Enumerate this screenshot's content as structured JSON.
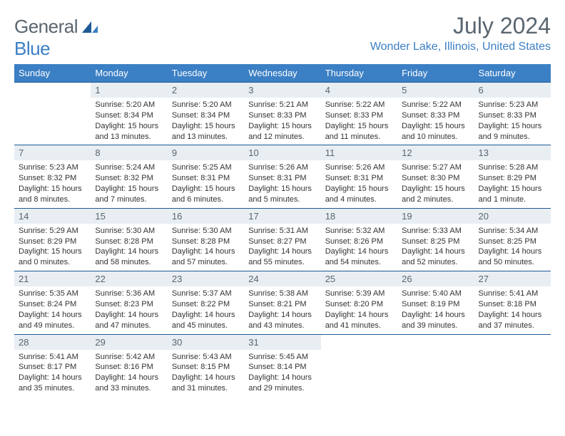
{
  "logo": {
    "general": "General",
    "blue": "Blue"
  },
  "title": "July 2024",
  "location": "Wonder Lake, Illinois, United States",
  "colors": {
    "header_bg": "#3b7fc4",
    "header_text": "#ffffff",
    "daynum_bg": "#e9eef3",
    "border": "#1f5a96",
    "logo_gray": "#5a6670",
    "logo_blue": "#3b7fc4"
  },
  "weekdays": [
    "Sunday",
    "Monday",
    "Tuesday",
    "Wednesday",
    "Thursday",
    "Friday",
    "Saturday"
  ],
  "weeks": [
    [
      {
        "n": "",
        "sr": "",
        "ss": "",
        "dl1": "",
        "dl2": "",
        "empty": true
      },
      {
        "n": "1",
        "sr": "Sunrise: 5:20 AM",
        "ss": "Sunset: 8:34 PM",
        "dl1": "Daylight: 15 hours",
        "dl2": "and 13 minutes."
      },
      {
        "n": "2",
        "sr": "Sunrise: 5:20 AM",
        "ss": "Sunset: 8:34 PM",
        "dl1": "Daylight: 15 hours",
        "dl2": "and 13 minutes."
      },
      {
        "n": "3",
        "sr": "Sunrise: 5:21 AM",
        "ss": "Sunset: 8:33 PM",
        "dl1": "Daylight: 15 hours",
        "dl2": "and 12 minutes."
      },
      {
        "n": "4",
        "sr": "Sunrise: 5:22 AM",
        "ss": "Sunset: 8:33 PM",
        "dl1": "Daylight: 15 hours",
        "dl2": "and 11 minutes."
      },
      {
        "n": "5",
        "sr": "Sunrise: 5:22 AM",
        "ss": "Sunset: 8:33 PM",
        "dl1": "Daylight: 15 hours",
        "dl2": "and 10 minutes."
      },
      {
        "n": "6",
        "sr": "Sunrise: 5:23 AM",
        "ss": "Sunset: 8:33 PM",
        "dl1": "Daylight: 15 hours",
        "dl2": "and 9 minutes."
      }
    ],
    [
      {
        "n": "7",
        "sr": "Sunrise: 5:23 AM",
        "ss": "Sunset: 8:32 PM",
        "dl1": "Daylight: 15 hours",
        "dl2": "and 8 minutes."
      },
      {
        "n": "8",
        "sr": "Sunrise: 5:24 AM",
        "ss": "Sunset: 8:32 PM",
        "dl1": "Daylight: 15 hours",
        "dl2": "and 7 minutes."
      },
      {
        "n": "9",
        "sr": "Sunrise: 5:25 AM",
        "ss": "Sunset: 8:31 PM",
        "dl1": "Daylight: 15 hours",
        "dl2": "and 6 minutes."
      },
      {
        "n": "10",
        "sr": "Sunrise: 5:26 AM",
        "ss": "Sunset: 8:31 PM",
        "dl1": "Daylight: 15 hours",
        "dl2": "and 5 minutes."
      },
      {
        "n": "11",
        "sr": "Sunrise: 5:26 AM",
        "ss": "Sunset: 8:31 PM",
        "dl1": "Daylight: 15 hours",
        "dl2": "and 4 minutes."
      },
      {
        "n": "12",
        "sr": "Sunrise: 5:27 AM",
        "ss": "Sunset: 8:30 PM",
        "dl1": "Daylight: 15 hours",
        "dl2": "and 2 minutes."
      },
      {
        "n": "13",
        "sr": "Sunrise: 5:28 AM",
        "ss": "Sunset: 8:29 PM",
        "dl1": "Daylight: 15 hours",
        "dl2": "and 1 minute."
      }
    ],
    [
      {
        "n": "14",
        "sr": "Sunrise: 5:29 AM",
        "ss": "Sunset: 8:29 PM",
        "dl1": "Daylight: 15 hours",
        "dl2": "and 0 minutes."
      },
      {
        "n": "15",
        "sr": "Sunrise: 5:30 AM",
        "ss": "Sunset: 8:28 PM",
        "dl1": "Daylight: 14 hours",
        "dl2": "and 58 minutes."
      },
      {
        "n": "16",
        "sr": "Sunrise: 5:30 AM",
        "ss": "Sunset: 8:28 PM",
        "dl1": "Daylight: 14 hours",
        "dl2": "and 57 minutes."
      },
      {
        "n": "17",
        "sr": "Sunrise: 5:31 AM",
        "ss": "Sunset: 8:27 PM",
        "dl1": "Daylight: 14 hours",
        "dl2": "and 55 minutes."
      },
      {
        "n": "18",
        "sr": "Sunrise: 5:32 AM",
        "ss": "Sunset: 8:26 PM",
        "dl1": "Daylight: 14 hours",
        "dl2": "and 54 minutes."
      },
      {
        "n": "19",
        "sr": "Sunrise: 5:33 AM",
        "ss": "Sunset: 8:25 PM",
        "dl1": "Daylight: 14 hours",
        "dl2": "and 52 minutes."
      },
      {
        "n": "20",
        "sr": "Sunrise: 5:34 AM",
        "ss": "Sunset: 8:25 PM",
        "dl1": "Daylight: 14 hours",
        "dl2": "and 50 minutes."
      }
    ],
    [
      {
        "n": "21",
        "sr": "Sunrise: 5:35 AM",
        "ss": "Sunset: 8:24 PM",
        "dl1": "Daylight: 14 hours",
        "dl2": "and 49 minutes."
      },
      {
        "n": "22",
        "sr": "Sunrise: 5:36 AM",
        "ss": "Sunset: 8:23 PM",
        "dl1": "Daylight: 14 hours",
        "dl2": "and 47 minutes."
      },
      {
        "n": "23",
        "sr": "Sunrise: 5:37 AM",
        "ss": "Sunset: 8:22 PM",
        "dl1": "Daylight: 14 hours",
        "dl2": "and 45 minutes."
      },
      {
        "n": "24",
        "sr": "Sunrise: 5:38 AM",
        "ss": "Sunset: 8:21 PM",
        "dl1": "Daylight: 14 hours",
        "dl2": "and 43 minutes."
      },
      {
        "n": "25",
        "sr": "Sunrise: 5:39 AM",
        "ss": "Sunset: 8:20 PM",
        "dl1": "Daylight: 14 hours",
        "dl2": "and 41 minutes."
      },
      {
        "n": "26",
        "sr": "Sunrise: 5:40 AM",
        "ss": "Sunset: 8:19 PM",
        "dl1": "Daylight: 14 hours",
        "dl2": "and 39 minutes."
      },
      {
        "n": "27",
        "sr": "Sunrise: 5:41 AM",
        "ss": "Sunset: 8:18 PM",
        "dl1": "Daylight: 14 hours",
        "dl2": "and 37 minutes."
      }
    ],
    [
      {
        "n": "28",
        "sr": "Sunrise: 5:41 AM",
        "ss": "Sunset: 8:17 PM",
        "dl1": "Daylight: 14 hours",
        "dl2": "and 35 minutes."
      },
      {
        "n": "29",
        "sr": "Sunrise: 5:42 AM",
        "ss": "Sunset: 8:16 PM",
        "dl1": "Daylight: 14 hours",
        "dl2": "and 33 minutes."
      },
      {
        "n": "30",
        "sr": "Sunrise: 5:43 AM",
        "ss": "Sunset: 8:15 PM",
        "dl1": "Daylight: 14 hours",
        "dl2": "and 31 minutes."
      },
      {
        "n": "31",
        "sr": "Sunrise: 5:45 AM",
        "ss": "Sunset: 8:14 PM",
        "dl1": "Daylight: 14 hours",
        "dl2": "and 29 minutes."
      },
      {
        "n": "",
        "sr": "",
        "ss": "",
        "dl1": "",
        "dl2": "",
        "empty": true
      },
      {
        "n": "",
        "sr": "",
        "ss": "",
        "dl1": "",
        "dl2": "",
        "empty": true
      },
      {
        "n": "",
        "sr": "",
        "ss": "",
        "dl1": "",
        "dl2": "",
        "empty": true
      }
    ]
  ]
}
